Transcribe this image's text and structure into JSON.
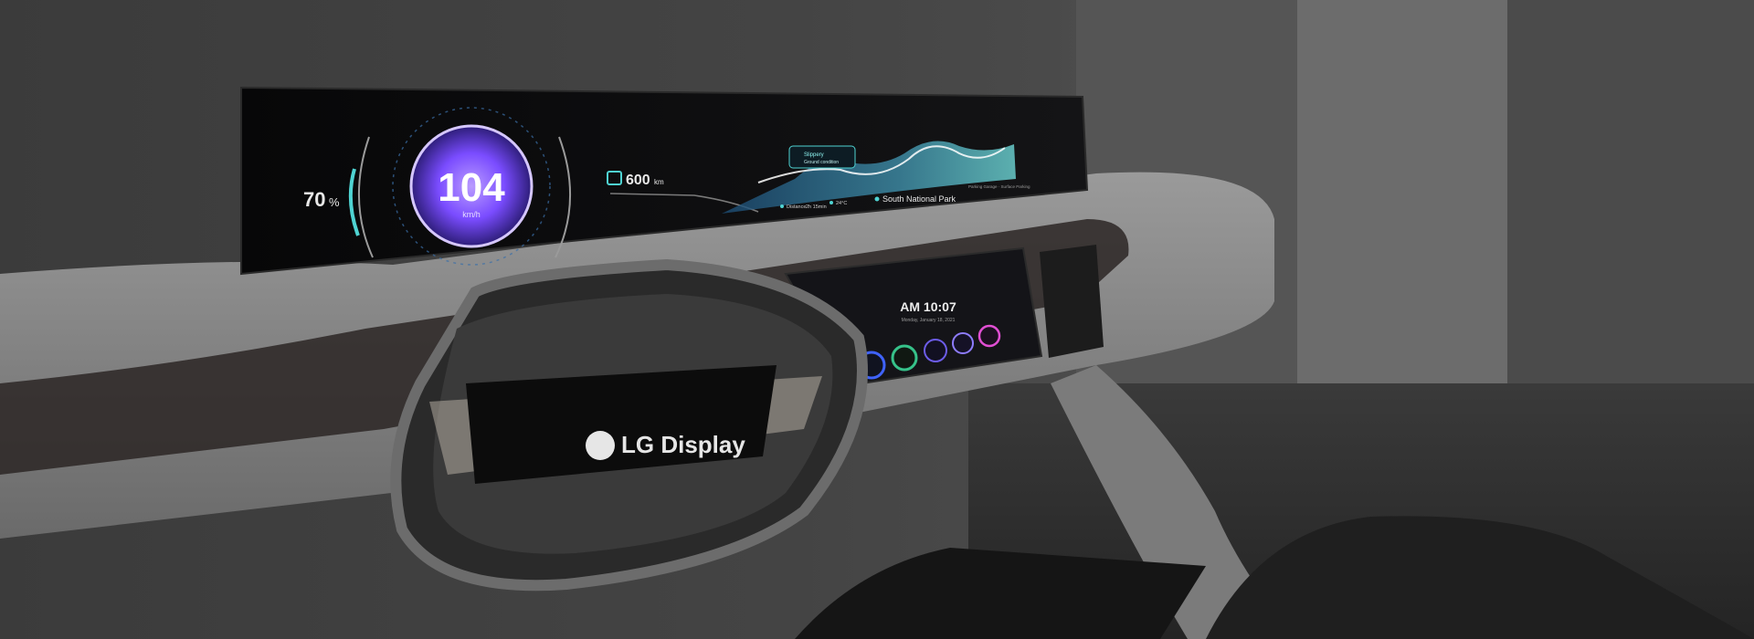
{
  "cluster": {
    "battery": "70",
    "battery_unit": "%",
    "speed": "104",
    "speed_unit": "km/h",
    "range_value": "600",
    "range_unit": "km",
    "route_card_title": "Slippery",
    "route_card_sub": "Ground condition",
    "stat_distance_label": "Distance",
    "stat_distance_value": "2h 15min",
    "stat_temp_value": "24°C",
    "destination": "South National Park",
    "small_right_text": "Parking Garage · Surface Parking"
  },
  "center_display": {
    "clock": "AM 10:07",
    "date": "Monday, January 18, 2021",
    "apps": [
      {
        "icon": "phone-icon",
        "color": "#3f63ff"
      },
      {
        "icon": "music-icon",
        "color": "#36c28a"
      },
      {
        "icon": "navigation-icon",
        "color": "#6c5ce7"
      },
      {
        "icon": "settings-icon",
        "color": "#8e7cff"
      },
      {
        "icon": "media-icon",
        "color": "#e14fd3"
      }
    ]
  },
  "steering_wheel": {
    "brand": "LG Display"
  },
  "colors": {
    "accent_violet": "#8d6bff",
    "accent_teal": "#4fd3d2",
    "screen_bg": "#0a0b0f"
  }
}
